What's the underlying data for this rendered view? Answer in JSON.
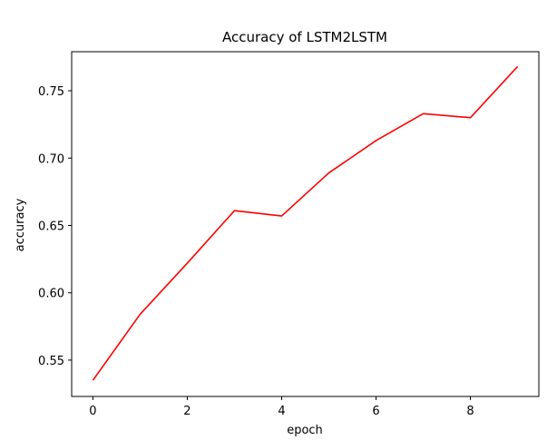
{
  "chart_data": {
    "type": "line",
    "title": "Accuracy of LSTM2LSTM",
    "xlabel": "epoch",
    "ylabel": "accuracy",
    "x": [
      0,
      1,
      2,
      3,
      4,
      5,
      6,
      7,
      8,
      9
    ],
    "series": [
      {
        "values": [
          0.535,
          0.584,
          0.622,
          0.661,
          0.657,
          0.689,
          0.713,
          0.733,
          0.73,
          0.768
        ],
        "color": "#ff0000"
      }
    ],
    "xlim": [
      -0.45,
      9.45
    ],
    "ylim": [
      0.523,
      0.779
    ],
    "xticks": [
      0,
      2,
      4,
      6,
      8
    ],
    "xtick_labels": [
      "0",
      "2",
      "4",
      "6",
      "8"
    ],
    "yticks": [
      0.55,
      0.6,
      0.65,
      0.7,
      0.75
    ],
    "ytick_labels": [
      "0.55",
      "0.60",
      "0.65",
      "0.70",
      "0.75"
    ],
    "grid": false,
    "legend": "none"
  }
}
